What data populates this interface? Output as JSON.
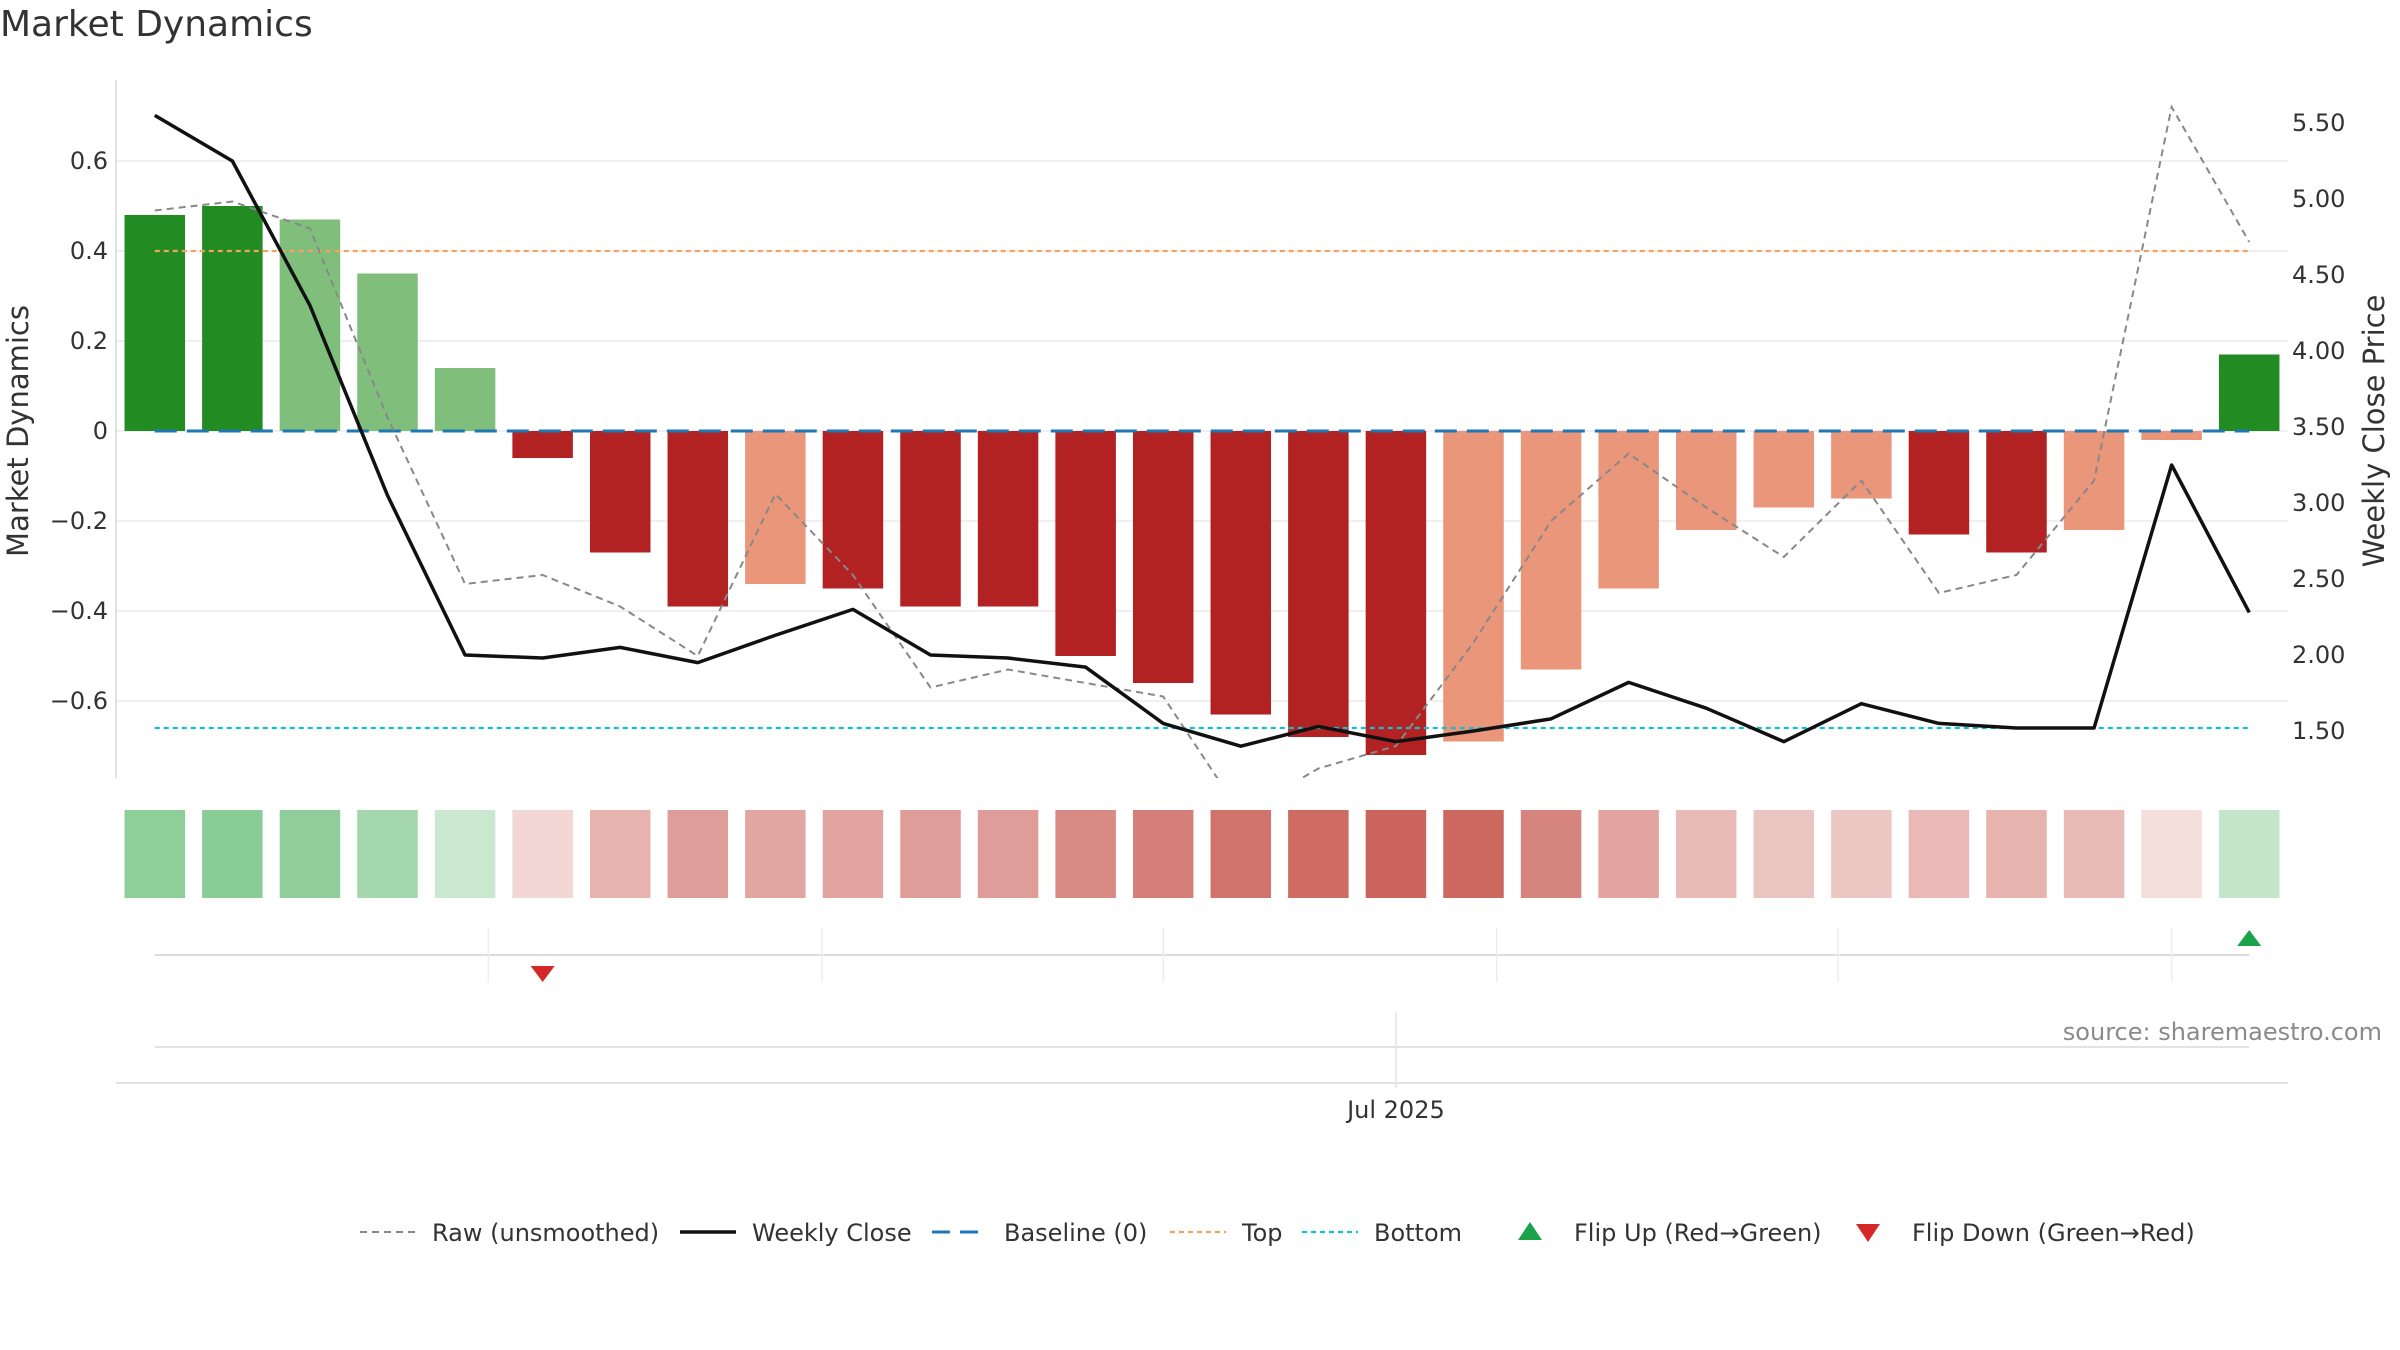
{
  "title": "Market Dynamics",
  "source": "source: sharemaestro.com",
  "chart_data": {
    "type": "bar",
    "title": "Market Dynamics",
    "ylabel_left": "Market Dynamics",
    "ylabel_right": "Weekly Close Price",
    "ylim_left": [
      -0.77,
      0.77
    ],
    "ylim_right": [
      1.2,
      5.7
    ],
    "yticks_left": [
      -0.6,
      -0.4,
      -0.2,
      0,
      0.2,
      0.4,
      0.6
    ],
    "yticks_left_labels": [
      "−0.6",
      "−0.4",
      "−0.2",
      "0",
      "0.2",
      "0.4",
      "0.6"
    ],
    "yticks_right": [
      1.5,
      2.0,
      2.5,
      3.0,
      3.5,
      4.0,
      4.5,
      5.0,
      5.5
    ],
    "yticks_right_labels": [
      "1.50",
      "2.00",
      "2.50",
      "3.00",
      "3.50",
      "4.00",
      "4.50",
      "5.00",
      "5.50"
    ],
    "x_tick_label": "Jul 2025",
    "x_tick_index": 16,
    "grid": true,
    "legend_position": "bottom",
    "colors": {
      "strong_green": "#228b22",
      "light_green": "#7fbf7b",
      "strong_red": "#b22222",
      "light_red": "#e9967a",
      "weekly_close": "#111111",
      "raw": "#888888",
      "baseline": "#1f77b4",
      "top": "#f4a460",
      "bottom": "#17becf",
      "flip_up": "#1aa34a",
      "flip_down": "#d62728"
    },
    "momentum": [
      0.48,
      0.5,
      0.47,
      0.35,
      0.14,
      -0.06,
      -0.27,
      -0.39,
      -0.34,
      -0.35,
      -0.39,
      -0.39,
      -0.5,
      -0.56,
      -0.63,
      -0.68,
      -0.72,
      -0.69,
      -0.53,
      -0.35,
      -0.22,
      -0.17,
      -0.15,
      -0.23,
      -0.27,
      -0.22,
      -0.02,
      0.17
    ],
    "bar_shade": [
      "strong",
      "strong",
      "light",
      "light",
      "light",
      "strong",
      "strong",
      "strong",
      "light",
      "strong",
      "strong",
      "strong",
      "strong",
      "strong",
      "strong",
      "strong",
      "strong",
      "light",
      "light",
      "light",
      "light",
      "light",
      "light",
      "strong",
      "strong",
      "light",
      "light",
      "strong"
    ],
    "weekly_close": [
      5.55,
      5.25,
      4.3,
      3.05,
      2.0,
      1.98,
      2.05,
      1.95,
      2.13,
      2.3,
      2.0,
      1.98,
      1.92,
      1.55,
      1.4,
      1.53,
      1.43,
      1.5,
      1.58,
      1.82,
      1.65,
      1.43,
      1.68,
      1.55,
      1.52,
      1.52,
      3.25,
      2.28
    ],
    "raw": [
      0.49,
      0.51,
      0.45,
      0.03,
      -0.34,
      -0.32,
      -0.39,
      -0.5,
      -0.14,
      -0.32,
      -0.57,
      -0.53,
      -0.56,
      -0.59,
      -0.85,
      -0.75,
      -0.7,
      -0.47,
      -0.2,
      -0.05,
      -0.17,
      -0.28,
      -0.11,
      -0.36,
      -0.32,
      -0.11,
      0.72,
      0.42
    ],
    "heat_strip": [
      0.48,
      0.5,
      0.47,
      0.35,
      0.14,
      -0.06,
      -0.27,
      -0.39,
      -0.34,
      -0.35,
      -0.39,
      -0.39,
      -0.5,
      -0.56,
      -0.63,
      -0.68,
      -0.72,
      -0.69,
      -0.53,
      -0.35,
      -0.22,
      -0.17,
      -0.15,
      -0.23,
      -0.27,
      -0.22,
      -0.02,
      0.17
    ],
    "baseline": 0,
    "top": 0.4,
    "bottom": -0.66,
    "flip_up_index": [
      27
    ],
    "flip_down_index": [
      5
    ],
    "legend": [
      {
        "label": "Raw (unsmoothed)",
        "kind": "raw"
      },
      {
        "label": "Weekly Close",
        "kind": "weekly_close"
      },
      {
        "label": "Baseline (0)",
        "kind": "baseline"
      },
      {
        "label": "Top",
        "kind": "top"
      },
      {
        "label": "Bottom",
        "kind": "bottom"
      },
      {
        "label": "Flip Up (Red→Green)",
        "kind": "flip_up"
      },
      {
        "label": "Flip Down (Green→Red)",
        "kind": "flip_down"
      }
    ]
  }
}
